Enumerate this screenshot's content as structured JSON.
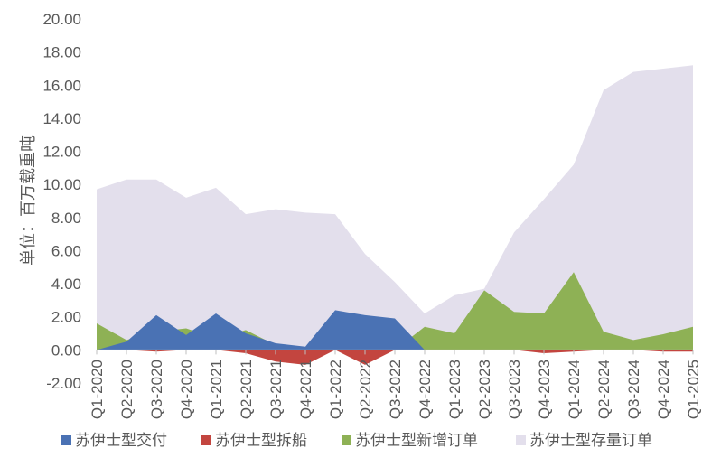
{
  "chart_data": {
    "type": "area",
    "ylabel": "单位：百万载重吨",
    "ylim": [
      -2,
      20
    ],
    "yticks": [
      "-2.00",
      "0.00",
      "2.00",
      "4.00",
      "6.00",
      "8.00",
      "10.00",
      "12.00",
      "14.00",
      "16.00",
      "18.00",
      "20.00"
    ],
    "categories": [
      "Q1-2020",
      "Q2-2020",
      "Q3-2020",
      "Q4-2020",
      "Q1-2021",
      "Q2-2021",
      "Q3-2021",
      "Q4-2021",
      "Q1-2022",
      "Q2-2022",
      "Q3-2022",
      "Q4-2022",
      "Q1-2023",
      "Q2-2023",
      "Q3-2023",
      "Q4-2023",
      "Q1-2024",
      "Q2-2024",
      "Q3-2024",
      "Q4-2024",
      "Q1-2025"
    ],
    "series": [
      {
        "name": "苏伊士型存量订单",
        "color": "#e3dfec",
        "values": [
          9.7,
          10.3,
          10.3,
          9.2,
          9.8,
          8.2,
          8.5,
          8.3,
          8.2,
          5.8,
          4.1,
          2.2,
          3.3,
          3.7,
          7.1,
          9.1,
          11.2,
          15.7,
          16.8,
          17.0,
          17.2
        ]
      },
      {
        "name": "苏伊士型新增订单",
        "color": "#8eb155",
        "values": [
          1.6,
          0.6,
          1.1,
          1.3,
          0.7,
          1.2,
          0.3,
          0.0,
          0.0,
          0.3,
          0.0,
          1.4,
          1.0,
          3.6,
          2.3,
          2.2,
          4.7,
          1.1,
          0.6,
          0.95,
          1.4
        ]
      },
      {
        "name": "苏伊士型交付",
        "color": "#4a72b4",
        "values": [
          0.0,
          0.5,
          2.1,
          0.9,
          2.2,
          1.0,
          0.4,
          0.2,
          2.4,
          2.1,
          1.9,
          0.0,
          0.0,
          0.0,
          0.0,
          0.0,
          0.0,
          0.0,
          0.0,
          0.0,
          0.0
        ]
      },
      {
        "name": "苏伊士型拆船",
        "color": "#c3453f",
        "values": [
          0.0,
          0.0,
          -0.1,
          0.0,
          0.0,
          -0.2,
          -0.7,
          -0.9,
          0.0,
          -0.9,
          0.0,
          0.0,
          0.0,
          0.0,
          0.0,
          -0.2,
          -0.1,
          0.0,
          0.0,
          -0.1,
          -0.1
        ]
      }
    ],
    "legend": [
      {
        "name": "苏伊士型交付",
        "color": "#4a72b4"
      },
      {
        "name": "苏伊士型拆船",
        "color": "#c3453f"
      },
      {
        "name": "苏伊士型新增订单",
        "color": "#8eb155"
      },
      {
        "name": "苏伊士型存量订单",
        "color": "#e3dfec"
      }
    ],
    "legend_position": "bottom",
    "grid": false
  }
}
